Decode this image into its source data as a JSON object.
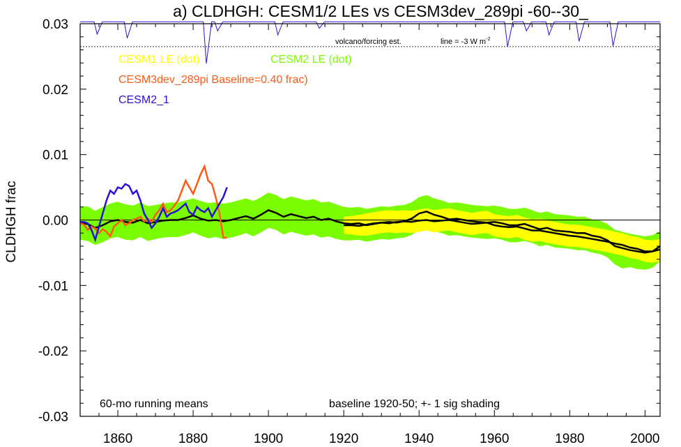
{
  "chart_data": {
    "type": "line",
    "title": "a) CLDHGH: CESM1/2 LEs vs CESM3dev_289pi -60--30_",
    "ylabel": "CLDHGH frac",
    "xlabel": "",
    "xlim": [
      1850,
      2004
    ],
    "ylim": [
      -0.03,
      0.03
    ],
    "x_ticks": [
      1860,
      1880,
      1900,
      1920,
      1940,
      1960,
      1980,
      2000
    ],
    "y_ticks": [
      {
        "v": 0.03,
        "label": "0.03"
      },
      {
        "v": 0.02,
        "label": "0.02"
      },
      {
        "v": 0.01,
        "label": "0.01"
      },
      {
        "v": 0.0,
        "label": "0.00"
      },
      {
        "v": -0.01,
        "label": "-0.01"
      },
      {
        "v": -0.02,
        "label": "-0.02"
      },
      {
        "v": -0.03,
        "label": "-0.03"
      }
    ],
    "legend": {
      "cesm1": "CESM1 LE (dot)",
      "cesm2": "CESM2 LE (dot)",
      "cesm3": "CESM3dev_289pi Baseline=0.40 frac)",
      "cesm2_1": "CESM2_1"
    },
    "annotations": {
      "volcano": "volcano/forcing est.",
      "line_prefix": "line = -3 W m",
      "line_sup": "-2",
      "running": "60-mo running means",
      "baseline": "baseline 1920-50; +- 1 sig shading"
    },
    "colors": {
      "cesm1_band": "#ffff00",
      "cesm2_band": "#7cfc00",
      "cesm3": "#ff5a14",
      "cesm2_1": "#2a10d8",
      "ensemble_mean": "#000000",
      "volcano": "#2a10d8"
    },
    "volcano_ref_y": 0.0265,
    "volcano_dips": [
      {
        "x": 1854.5,
        "y": 0.0284
      },
      {
        "x": 1862.5,
        "y": 0.0278
      },
      {
        "x": 1883.5,
        "y": 0.0239
      },
      {
        "x": 1886.5,
        "y": 0.0289
      },
      {
        "x": 1902.5,
        "y": 0.0283
      },
      {
        "x": 1913.5,
        "y": 0.0293
      },
      {
        "x": 1963.5,
        "y": 0.0265
      },
      {
        "x": 1968.5,
        "y": 0.0289
      },
      {
        "x": 1974.5,
        "y": 0.0283
      },
      {
        "x": 1982.5,
        "y": 0.0273
      },
      {
        "x": 1991.5,
        "y": 0.0266
      }
    ],
    "series": [
      {
        "name": "CESM2 LE (dot)",
        "role": "cesm2",
        "x": [
          1850,
          1852,
          1854,
          1856,
          1858,
          1860,
          1862,
          1864,
          1866,
          1868,
          1870,
          1872,
          1874,
          1876,
          1878,
          1880,
          1882,
          1884,
          1886,
          1888,
          1890,
          1892,
          1894,
          1896,
          1898,
          1900,
          1902,
          1904,
          1906,
          1908,
          1910,
          1912,
          1914,
          1916,
          1918,
          1920,
          1922,
          1924,
          1926,
          1928,
          1930,
          1932,
          1934,
          1936,
          1938,
          1940,
          1942,
          1944,
          1946,
          1948,
          1950,
          1952,
          1954,
          1956,
          1958,
          1960,
          1962,
          1964,
          1966,
          1968,
          1970,
          1972,
          1974,
          1976,
          1978,
          1980,
          1982,
          1984,
          1986,
          1988,
          1990,
          1992,
          1994,
          1996,
          1998,
          2000,
          2002,
          2004
        ],
        "mean": [
          -0.0005,
          -0.0006,
          -0.0012,
          -0.0008,
          -0.0002,
          0.0,
          -0.0003,
          -0.0004,
          0.0,
          -0.0005,
          -0.0003,
          -0.0001,
          0.0,
          0.0,
          0.0003,
          0.0007,
          0.0002,
          -0.0001,
          0.0,
          -0.0002,
          0.0,
          0.0003,
          0.0006,
          0.0002,
          0.0008,
          0.0015,
          0.0011,
          0.0005,
          0.0009,
          0.0006,
          0.0003,
          0.0005,
          0.0,
          0.0002,
          -0.0002,
          -0.0005,
          -0.0006,
          -0.0005,
          -0.0008,
          -0.0006,
          -0.0004,
          -0.0005,
          -0.0003,
          -0.0002,
          0.0002,
          0.001,
          0.0013,
          0.0008,
          0.0005,
          0.0001,
          0.0002,
          0.0,
          -0.0002,
          -0.0003,
          -0.0004,
          -0.0003,
          -0.0005,
          -0.0008,
          -0.0008,
          -0.0006,
          -0.001,
          -0.0014,
          -0.0012,
          -0.0016,
          -0.0017,
          -0.0018,
          -0.002,
          -0.002,
          -0.0024,
          -0.0026,
          -0.0031,
          -0.004,
          -0.0043,
          -0.0046,
          -0.0048,
          -0.005,
          -0.0048,
          -0.004
        ],
        "upper": [
          0.002,
          0.0021,
          0.0014,
          0.002,
          0.0025,
          0.0028,
          0.0024,
          0.0022,
          0.0027,
          0.0021,
          0.0023,
          0.0025,
          0.0027,
          0.0027,
          0.003,
          0.0033,
          0.0029,
          0.0026,
          0.0027,
          0.0025,
          0.0027,
          0.003,
          0.0033,
          0.0029,
          0.0035,
          0.0042,
          0.0038,
          0.0032,
          0.0036,
          0.0033,
          0.003,
          0.0032,
          0.0027,
          0.0028,
          0.0024,
          0.002,
          0.0019,
          0.002,
          0.0017,
          0.0019,
          0.0021,
          0.002,
          0.0022,
          0.0023,
          0.0027,
          0.0035,
          0.0038,
          0.0033,
          0.003,
          0.0026,
          0.0027,
          0.0025,
          0.0023,
          0.0022,
          0.0021,
          0.0022,
          0.002,
          0.0017,
          0.0017,
          0.0019,
          0.0015,
          0.0011,
          0.0013,
          0.0009,
          0.0008,
          0.0007,
          0.0005,
          0.0005,
          0.0001,
          -0.0001,
          -0.0006,
          -0.0015,
          -0.0018,
          -0.0021,
          -0.0023,
          -0.0025,
          -0.0023,
          -0.0017
        ],
        "lower": [
          -0.003,
          -0.0032,
          -0.0038,
          -0.0034,
          -0.0028,
          -0.0026,
          -0.003,
          -0.0031,
          -0.0026,
          -0.0032,
          -0.0029,
          -0.0027,
          -0.0026,
          -0.0026,
          -0.0023,
          -0.0019,
          -0.0024,
          -0.0028,
          -0.0026,
          -0.0029,
          -0.0027,
          -0.0024,
          -0.002,
          -0.0025,
          -0.0019,
          -0.0012,
          -0.0015,
          -0.0022,
          -0.0018,
          -0.0021,
          -0.0024,
          -0.0022,
          -0.0027,
          -0.0025,
          -0.0029,
          -0.0031,
          -0.0031,
          -0.003,
          -0.0033,
          -0.0031,
          -0.0029,
          -0.003,
          -0.0028,
          -0.0027,
          -0.0023,
          -0.0015,
          -0.0012,
          -0.0017,
          -0.002,
          -0.0024,
          -0.0023,
          -0.0025,
          -0.0027,
          -0.0028,
          -0.0029,
          -0.0028,
          -0.003,
          -0.0034,
          -0.0034,
          -0.0032,
          -0.0035,
          -0.004,
          -0.0038,
          -0.0042,
          -0.0043,
          -0.0044,
          -0.0046,
          -0.0046,
          -0.005,
          -0.0052,
          -0.0057,
          -0.0068,
          -0.0074,
          -0.0072,
          -0.0075,
          -0.0076,
          -0.0073,
          -0.0063
        ]
      },
      {
        "name": "CESM1 LE (dot)",
        "role": "cesm1",
        "x": [
          1920,
          1922,
          1924,
          1926,
          1928,
          1930,
          1932,
          1934,
          1936,
          1938,
          1940,
          1942,
          1944,
          1946,
          1948,
          1950,
          1952,
          1954,
          1956,
          1958,
          1960,
          1962,
          1964,
          1966,
          1968,
          1970,
          1972,
          1974,
          1976,
          1978,
          1980,
          1982,
          1984,
          1986,
          1988,
          1990,
          1992,
          1994,
          1996,
          1998,
          2000,
          2002,
          2004
        ],
        "mean": [
          -0.0008,
          -0.0008,
          -0.0008,
          -0.0007,
          -0.0005,
          -0.0003,
          -0.0002,
          -0.0003,
          -0.0002,
          -0.0003,
          -0.0001,
          0.0001,
          -0.0002,
          0.0,
          0.0001,
          -0.0002,
          -0.0004,
          -0.0006,
          -0.0004,
          -0.0003,
          -0.0008,
          -0.001,
          -0.0011,
          -0.0009,
          -0.0013,
          -0.0016,
          -0.0015,
          -0.0018,
          -0.002,
          -0.0022,
          -0.0024,
          -0.0024,
          -0.0026,
          -0.0028,
          -0.003,
          -0.0032,
          -0.0035,
          -0.0037,
          -0.0041,
          -0.0043,
          -0.0047,
          -0.0048,
          -0.0046
        ],
        "upper": [
          0.0005,
          0.0006,
          0.0008,
          0.001,
          0.0012,
          0.0014,
          0.0015,
          0.0014,
          0.0015,
          0.0014,
          0.0016,
          0.0018,
          0.0015,
          0.0017,
          0.0018,
          0.0015,
          0.0013,
          0.0011,
          0.0013,
          0.0014,
          0.0009,
          0.0007,
          0.0006,
          0.0008,
          0.0004,
          0.0001,
          0.0002,
          -0.0001,
          -0.0003,
          -0.0005,
          -0.0007,
          -0.0007,
          -0.0009,
          -0.0011,
          -0.0013,
          -0.0015,
          -0.0018,
          -0.002,
          -0.0024,
          -0.0026,
          -0.003,
          -0.0031,
          -0.0029
        ],
        "lower": [
          -0.0021,
          -0.0022,
          -0.0024,
          -0.0024,
          -0.0022,
          -0.002,
          -0.0019,
          -0.002,
          -0.0019,
          -0.002,
          -0.0018,
          -0.0016,
          -0.0019,
          -0.0017,
          -0.0016,
          -0.0019,
          -0.0021,
          -0.0023,
          -0.0021,
          -0.002,
          -0.0025,
          -0.0027,
          -0.0028,
          -0.0026,
          -0.003,
          -0.0033,
          -0.0032,
          -0.0035,
          -0.0037,
          -0.0039,
          -0.0041,
          -0.0041,
          -0.0043,
          -0.0045,
          -0.0047,
          -0.0049,
          -0.0052,
          -0.0054,
          -0.0058,
          -0.006,
          -0.0064,
          -0.0065,
          -0.0063
        ]
      },
      {
        "name": "CESM3dev_289pi Baseline=0.40 frac)",
        "role": "cesm3",
        "x": [
          1850,
          1851,
          1852,
          1853,
          1854,
          1855,
          1856,
          1857,
          1858,
          1859,
          1860,
          1861,
          1862,
          1863,
          1864,
          1865,
          1866,
          1867,
          1868,
          1869,
          1870,
          1871,
          1872,
          1873,
          1874,
          1875,
          1876,
          1877,
          1878,
          1879,
          1880,
          1881,
          1882,
          1883,
          1884,
          1885,
          1886,
          1887,
          1888,
          1889
        ],
        "values": [
          -0.0005,
          -0.0007,
          -0.0015,
          -0.001,
          -0.0013,
          -0.002,
          -0.0014,
          -0.0018,
          -0.0025,
          -0.001,
          -0.0005,
          0.0,
          -0.0008,
          -0.0005,
          0.0,
          0.0002,
          0.0005,
          -0.0002,
          0.0002,
          -0.0003,
          0.0008,
          0.0015,
          0.0025,
          0.0012,
          0.0015,
          0.0022,
          0.003,
          0.0045,
          0.006,
          0.005,
          0.004,
          0.0055,
          0.007,
          0.0082,
          0.006,
          0.0055,
          0.0035,
          0.001,
          -0.0027,
          -0.0027
        ]
      },
      {
        "name": "CESM2_1",
        "role": "cesm2_1",
        "x": [
          1850,
          1851,
          1852,
          1853,
          1854,
          1855,
          1856,
          1857,
          1858,
          1859,
          1860,
          1861,
          1862,
          1863,
          1864,
          1865,
          1866,
          1867,
          1868,
          1869,
          1870,
          1871,
          1872,
          1873,
          1874,
          1875,
          1876,
          1877,
          1878,
          1879,
          1880,
          1881,
          1882,
          1883,
          1884,
          1885,
          1886,
          1887,
          1888,
          1889
        ],
        "values": [
          -0.0003,
          -0.0003,
          -0.0005,
          -0.0015,
          -0.003,
          -0.001,
          0.001,
          0.003,
          0.0045,
          0.004,
          0.005,
          0.0048,
          0.0055,
          0.0052,
          0.004,
          0.0045,
          0.003,
          0.001,
          0.0,
          -0.0012,
          -0.0005,
          0.0005,
          0.0018,
          0.0005,
          0.001,
          0.0012,
          0.0015,
          0.002,
          0.0025,
          0.0012,
          0.0008,
          0.002,
          0.0015,
          0.0012,
          0.0018,
          0.0005,
          0.0015,
          0.0025,
          0.0035,
          0.005
        ]
      },
      {
        "name": "",
        "role": "mean_lower",
        "x": [
          1920,
          1922,
          1924,
          1926,
          1928,
          1930,
          1932,
          1934,
          1936,
          1938,
          1940,
          1942,
          1944,
          1946,
          1948,
          1950,
          1952,
          1954,
          1956,
          1958,
          1960,
          1962,
          1964,
          1966,
          1968,
          1970,
          1972,
          1974,
          1976,
          1978,
          1980,
          1982,
          1984,
          1986,
          1988,
          1990,
          1992,
          1994,
          1996,
          1998,
          2000,
          2002,
          2004
        ],
        "values": [
          -0.0008,
          -0.0008,
          -0.0009,
          -0.0007,
          -0.0005,
          -0.0004,
          -0.0003,
          -0.0004,
          -0.0002,
          -0.0003,
          -0.0001,
          0.0,
          -0.0002,
          -0.0001,
          0.0,
          -0.0002,
          -0.0004,
          -0.0006,
          -0.0005,
          -0.0004,
          -0.0008,
          -0.001,
          -0.0011,
          -0.001,
          -0.0013,
          -0.0016,
          -0.0016,
          -0.0018,
          -0.002,
          -0.0022,
          -0.0024,
          -0.0025,
          -0.0027,
          -0.0029,
          -0.0031,
          -0.0033,
          -0.0036,
          -0.0038,
          -0.0042,
          -0.0044,
          -0.0048,
          -0.0048,
          -0.0045
        ]
      }
    ]
  }
}
